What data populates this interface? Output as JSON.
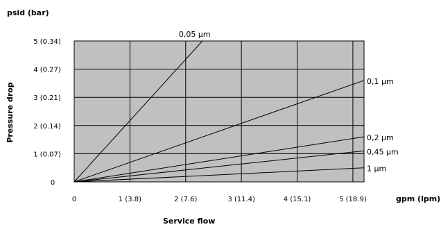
{
  "chart_data": {
    "type": "line",
    "title": "",
    "xlabel": "Service flow",
    "ylabel": "Pressure drop",
    "x_unit": "gpm (lpm)",
    "y_unit": "psid (bar)",
    "xlim": [
      0,
      5.2
    ],
    "ylim": [
      0,
      5
    ],
    "grid": true,
    "legend": "line-end labels",
    "x_ticks": [
      "0",
      "1 (3.8)",
      "2 (7.6)",
      "3 (11.4)",
      "4 (15.1)",
      "5 (18.9)"
    ],
    "y_ticks": [
      "0",
      "1 (0.07)",
      "2 (0.14)",
      "3 (0.21)",
      "4 (0.27)",
      "5 (0.34)"
    ],
    "colors": {
      "plot_background": "#c0c0c0",
      "line": "#000000",
      "grid": "#000000"
    },
    "series": [
      {
        "name": "0,05 µm",
        "x": [
          0,
          2.3
        ],
        "y": [
          0,
          5
        ]
      },
      {
        "name": "0,1 µm",
        "x": [
          0,
          5.2
        ],
        "y": [
          0,
          3.6
        ]
      },
      {
        "name": "0,2 µm",
        "x": [
          0,
          5.2
        ],
        "y": [
          0,
          1.6
        ]
      },
      {
        "name": "0,45 µm",
        "x": [
          0,
          5.2
        ],
        "y": [
          0,
          1.1
        ]
      },
      {
        "name": "1 µm",
        "x": [
          0,
          5.2
        ],
        "y": [
          0,
          0.5
        ]
      }
    ]
  }
}
